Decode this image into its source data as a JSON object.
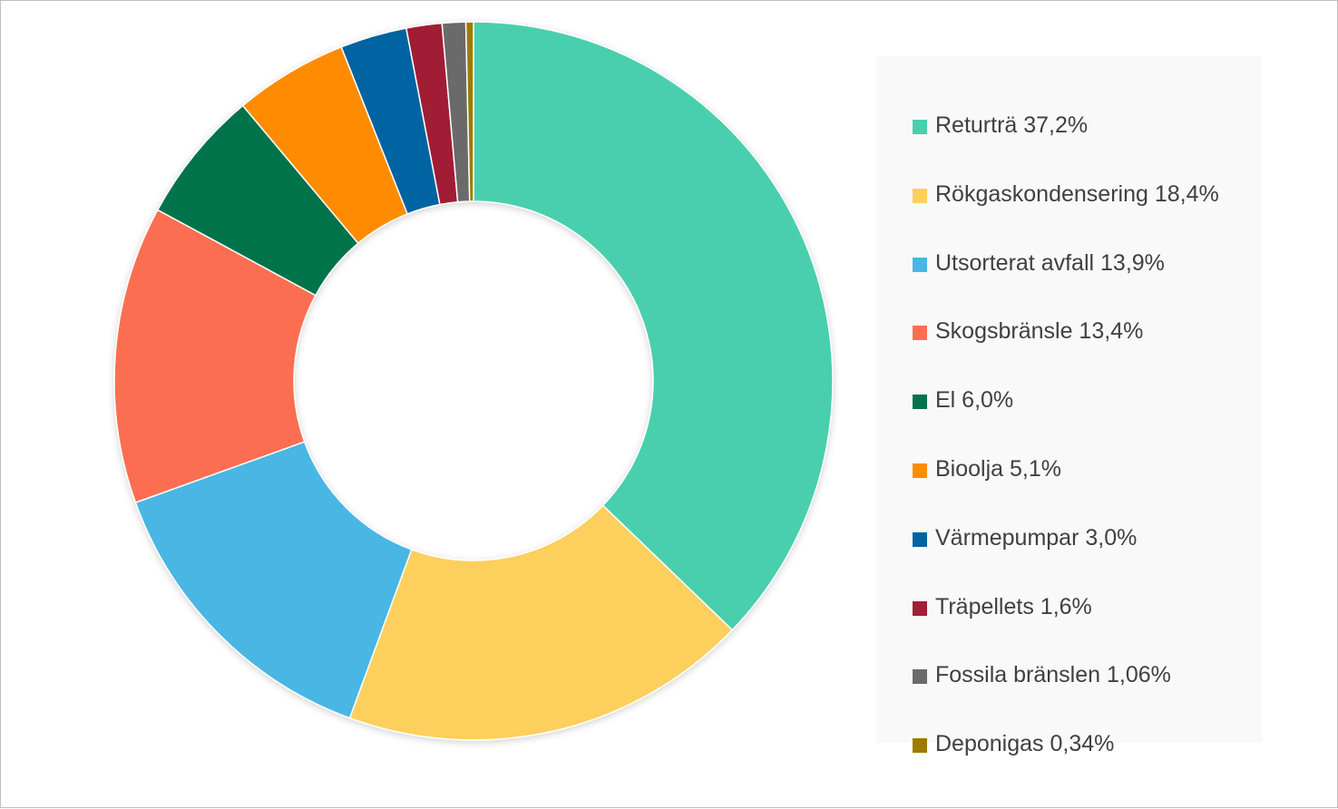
{
  "chart_data": {
    "type": "pie",
    "variant": "doughnut",
    "title": "",
    "legend_position": "right",
    "slices": [
      {
        "label": "Returträ 37,2%",
        "value": 37.2,
        "color": "#48cfae"
      },
      {
        "label": "Rökgaskondensering 18,4%",
        "value": 18.4,
        "color": "#fdcf5b"
      },
      {
        "label": "Utsorterat avfall 13,9%",
        "value": 13.9,
        "color": "#4ab6e3"
      },
      {
        "label": "Skogsbränsle 13,4%",
        "value": 13.4,
        "color": "#fc6e51"
      },
      {
        "label": "El 6,0%",
        "value": 6.0,
        "color": "#02734b"
      },
      {
        "label": "Bioolja 5,1%",
        "value": 5.1,
        "color": "#ff8c00"
      },
      {
        "label": "Värmepumpar 3,0%",
        "value": 3.0,
        "color": "#0263a2"
      },
      {
        "label": "Träpellets 1,6%",
        "value": 1.6,
        "color": "#a11f36"
      },
      {
        "label": "Fossila bränslen 1,06%",
        "value": 1.06,
        "color": "#6b6b6b"
      },
      {
        "label": "Deponigas 0,34%",
        "value": 0.34,
        "color": "#9c7b00"
      }
    ]
  }
}
